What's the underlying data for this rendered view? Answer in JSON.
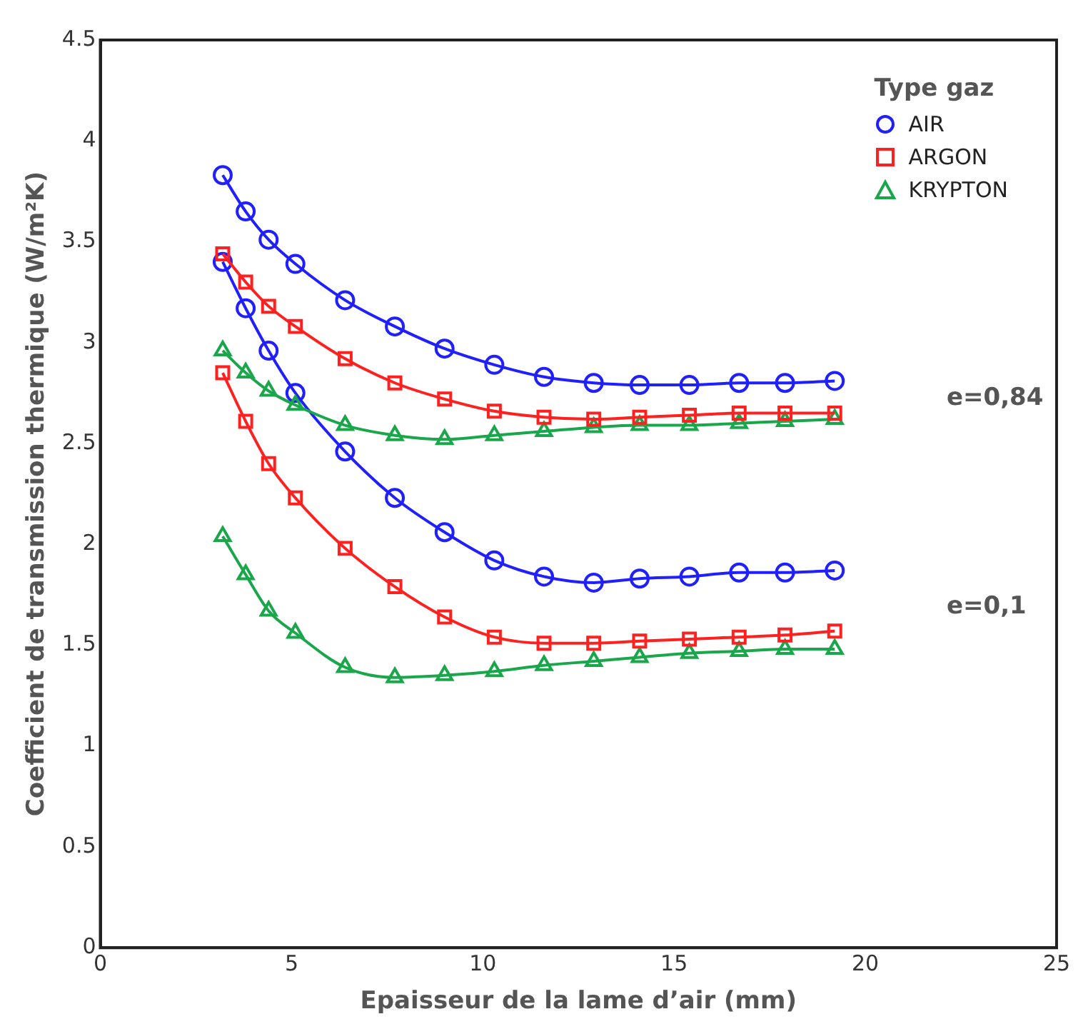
{
  "chart_data": {
    "type": "line",
    "xlabel": "Epaisseur de la lame d’air (mm)",
    "ylabel": "Coefficient de transmission thermique (W/m²K)",
    "legend_title": "Type gaz",
    "legend": "top right",
    "grid": false,
    "line_style": "solid",
    "xlim": [
      0,
      25
    ],
    "xticks": [
      0,
      5,
      10,
      15,
      20,
      25
    ],
    "ylim": [
      0,
      4.5
    ],
    "yticks": [
      0,
      0.5,
      1,
      1.5,
      2,
      2.5,
      3,
      3.5,
      4,
      4.5
    ],
    "x": [
      3.2,
      3.8,
      4.4,
      5.1,
      6.4,
      7.7,
      9.0,
      10.3,
      11.6,
      12.9,
      14.1,
      15.4,
      16.7,
      17.9,
      19.2
    ],
    "series": [
      {
        "name": "AIR",
        "color": "#1f1fff",
        "marker": "circle",
        "values": [
          3.83,
          3.65,
          3.51,
          3.39,
          3.21,
          3.08,
          2.97,
          2.89,
          2.83,
          2.8,
          2.79,
          2.79,
          2.8,
          2.8,
          2.81
        ]
      },
      {
        "name": "ARGON",
        "color": "#ff2020",
        "marker": "square",
        "values": [
          3.44,
          3.3,
          3.18,
          3.08,
          2.92,
          2.8,
          2.72,
          2.66,
          2.63,
          2.62,
          2.63,
          2.64,
          2.65,
          2.65,
          2.65
        ]
      },
      {
        "name": "KRYPTON",
        "color": "#1aa64a",
        "marker": "triangle",
        "values": [
          2.96,
          2.85,
          2.76,
          2.69,
          2.59,
          2.54,
          2.52,
          2.54,
          2.56,
          2.58,
          2.59,
          2.59,
          2.6,
          2.61,
          2.62
        ]
      },
      {
        "color": "#1f1fff",
        "marker": "circle",
        "values": [
          3.4,
          3.17,
          2.96,
          2.75,
          2.46,
          2.23,
          2.06,
          1.92,
          1.84,
          1.81,
          1.83,
          1.84,
          1.86,
          1.86,
          1.87
        ]
      },
      {
        "color": "#ff2020",
        "marker": "square",
        "values": [
          2.85,
          2.61,
          2.4,
          2.23,
          1.98,
          1.79,
          1.64,
          1.54,
          1.51,
          1.51,
          1.52,
          1.53,
          1.54,
          1.55,
          1.57
        ]
      },
      {
        "color": "#1aa64a",
        "marker": "triangle",
        "values": [
          2.04,
          1.85,
          1.67,
          1.56,
          1.39,
          1.34,
          1.35,
          1.37,
          1.4,
          1.42,
          1.44,
          1.46,
          1.47,
          1.48,
          1.48
        ]
      }
    ],
    "annotations": [
      "e=0,84",
      "e=0,1"
    ]
  }
}
